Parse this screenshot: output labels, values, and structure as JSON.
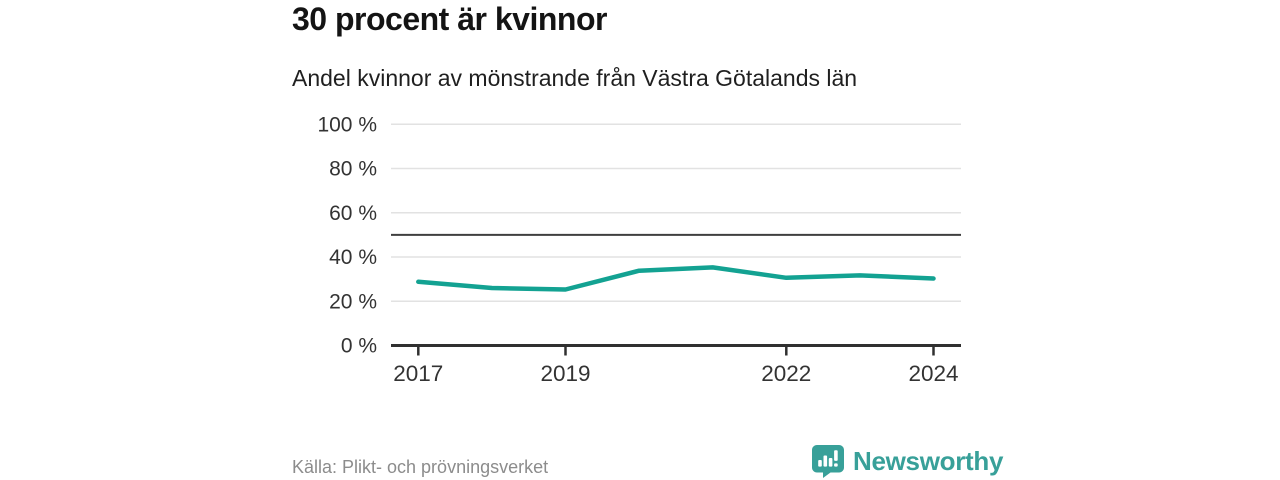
{
  "title": "30 procent är kvinnor",
  "subtitle": "Andel kvinnor av mönstrande från Västra Götalands län",
  "source": "Källa: Plikt- och prövningsverket",
  "brand": {
    "name": "Newsworthy",
    "icon": "newsworthy-speech-bubble-bar-chart-icon",
    "color": "#38a099"
  },
  "colors": {
    "line": "#13a292",
    "grid": "#e2e2e2",
    "axis": "#303030",
    "reference_line": "#3f3f3f",
    "tick_text": "#333333",
    "title_text": "#141414",
    "source_text": "#8c8c8c"
  },
  "chart_data": {
    "type": "line",
    "title": "30 procent är kvinnor",
    "subtitle": "Andel kvinnor av mönstrande från Västra Götalands län",
    "x": [
      2017,
      2018,
      2019,
      2020,
      2021,
      2022,
      2023,
      2024
    ],
    "series": [
      {
        "name": "Andel kvinnor av mönstrande",
        "values": [
          28.8,
          26.0,
          25.3,
          33.8,
          35.3,
          30.6,
          31.7,
          30.3
        ]
      }
    ],
    "xlabel": "",
    "ylabel": "",
    "ylim": [
      0,
      100
    ],
    "yticks": [
      0,
      20,
      40,
      60,
      80,
      100
    ],
    "ytick_format": "{v} %",
    "xtick_labels": [
      "2017",
      "2019",
      "2022",
      "2024"
    ],
    "xtick_years": [
      2017,
      2019,
      2022,
      2024
    ],
    "reference_line_y": 50,
    "grid": true,
    "legend": "none"
  }
}
